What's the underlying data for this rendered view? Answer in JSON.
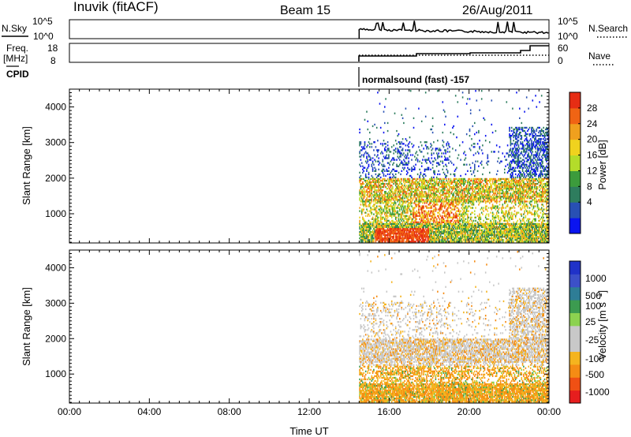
{
  "header": {
    "station": "Inuvik (fitACF)",
    "beam": "Beam 15",
    "date": "26/Aug/2011"
  },
  "noise_panel": {
    "left_label": "N.Sky",
    "left_ticks": [
      "10^5",
      "10^0"
    ],
    "right_label": "N.Search",
    "right_ticks": [
      "10^5",
      "10^0"
    ]
  },
  "freq_panel": {
    "left_label_line1": "Freq.",
    "left_label_line2": "[MHz]",
    "left_ticks": [
      "18",
      "8"
    ],
    "right_label": "Nave",
    "right_ticks": [
      "60",
      "0"
    ]
  },
  "cpid": {
    "label": "CPID",
    "mode": "normalsound (fast) -157"
  },
  "x_axis": {
    "label": "Time UT",
    "ticks": [
      "00:00",
      "04:00",
      "08:00",
      "12:00",
      "16:00",
      "20:00",
      "00:00"
    ]
  },
  "colors": {
    "power_scale": [
      "#0a14f0",
      "#2850b4",
      "#2e7d5e",
      "#3c9b3c",
      "#b4dc2a",
      "#f0d21e",
      "#f0a01e",
      "#f06414",
      "#e62d14"
    ],
    "velocity_scale": [
      "#e61e1e",
      "#f05014",
      "#f58c14",
      "#f5b41e",
      "#c8c8c8",
      "#c8c8c8",
      "#8cd250",
      "#3c9b50",
      "#2e7d96",
      "#3c50c8",
      "#2032c8"
    ]
  },
  "chart_data": [
    {
      "type": "heatmap",
      "title": "",
      "xlabel": "",
      "ylabel": "Slant Range [km]",
      "xlim": [
        "00:00",
        "24:00"
      ],
      "ylim": [
        180,
        4500
      ],
      "yticks": [
        "1000",
        "2000",
        "3000",
        "4000"
      ],
      "colorbar": {
        "label": "Power [dB]",
        "ticks": [
          "4",
          "8",
          "12",
          "16",
          "20",
          "24",
          "28"
        ]
      },
      "data_start": "14:30",
      "data_end": "24:00",
      "echo_regions": [
        {
          "t_start": "14:30",
          "t_end": "24:00",
          "range_km": [
            200,
            700
          ],
          "level_db": "12-28"
        },
        {
          "t_start": "14:30",
          "t_end": "24:00",
          "range_km": [
            1300,
            2000
          ],
          "level_db": "12-28"
        },
        {
          "t_start": "14:30",
          "t_end": "19:00",
          "range_km": [
            2000,
            3000
          ],
          "level_db": "4-12"
        },
        {
          "t_start": "22:00",
          "t_end": "24:00",
          "range_km": [
            2400,
            3300
          ],
          "level_db": "4-12"
        }
      ]
    },
    {
      "type": "heatmap",
      "title": "",
      "xlabel": "Time UT",
      "ylabel": "Slant Range [km]",
      "xlim": [
        "00:00",
        "24:00"
      ],
      "ylim": [
        180,
        4500
      ],
      "yticks": [
        "1000",
        "2000",
        "3000",
        "4000"
      ],
      "colorbar": {
        "label": "Velocity [m s^-1]",
        "ticks": [
          "1000",
          "500",
          "100",
          "25",
          "-25",
          "-100",
          "-500",
          "-1000"
        ]
      },
      "data_start": "14:30",
      "data_end": "24:00",
      "echo_regions": [
        {
          "t_start": "14:30",
          "t_end": "24:00",
          "range_km": [
            200,
            1200
          ],
          "velocity": "-500 to -100"
        },
        {
          "t_start": "14:30",
          "t_end": "24:00",
          "range_km": [
            1300,
            2000
          ],
          "velocity": "-25 to 25"
        },
        {
          "t_start": "22:00",
          "t_end": "24:00",
          "range_km": [
            2200,
            3300
          ],
          "velocity": "-25 to 25"
        }
      ]
    }
  ]
}
